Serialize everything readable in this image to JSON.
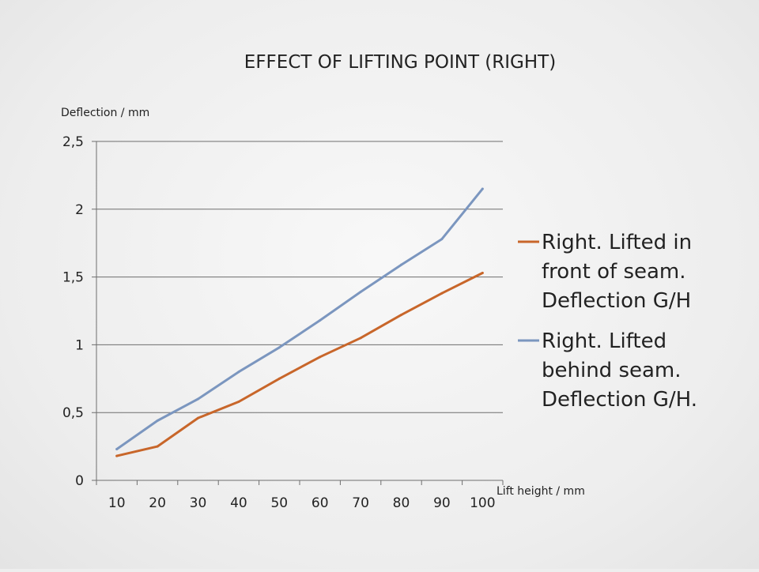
{
  "chart_data": {
    "type": "line",
    "title": "EFFECT OF LIFTING POINT (RIGHT)",
    "xlabel": "Lift height / mm",
    "ylabel": "Deflection / mm",
    "categories": [
      "10",
      "20",
      "30",
      "40",
      "50",
      "60",
      "70",
      "80",
      "90",
      "100"
    ],
    "y_ticks": [
      "0",
      "0,5",
      "1",
      "1,5",
      "2",
      "2,5"
    ],
    "ylim": [
      0,
      2.5
    ],
    "grid": "horizontal",
    "legend_position": "right",
    "series": [
      {
        "name": "Right. Lifted in front of seam. Deflection G/H",
        "legend_lines": [
          "Right. Lifted in",
          "front of seam.",
          "Deflection G/H"
        ],
        "color": "#c8662a",
        "values": [
          0.18,
          0.25,
          0.46,
          0.58,
          0.75,
          0.91,
          1.05,
          1.22,
          1.38,
          1.53
        ]
      },
      {
        "name": "Right. Lifted behind seam. Deflection G/H.",
        "legend_lines": [
          "Right. Lifted",
          "behind seam.",
          "Deflection G/H."
        ],
        "color": "#7b96bf",
        "values": [
          0.23,
          0.44,
          0.6,
          0.8,
          0.98,
          1.18,
          1.39,
          1.59,
          1.78,
          2.15
        ]
      }
    ]
  }
}
